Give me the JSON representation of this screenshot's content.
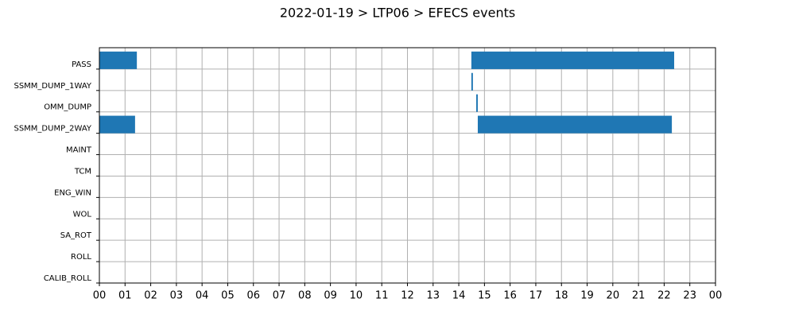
{
  "chart_data": {
    "type": "gantt",
    "title": "2022-01-19 > LTP06 > EFECS events",
    "categories": [
      "PASS",
      "SSMM_DUMP_1WAY",
      "OMM_DUMP",
      "SSMM_DUMP_2WAY",
      "MAINT",
      "TCM",
      "ENG_WIN",
      "WOL",
      "SA_ROT",
      "ROLL",
      "CALIB_ROLL"
    ],
    "intervals": [
      [
        [
          0,
          1.46
        ],
        [
          14.49,
          22.39
        ]
      ],
      [
        [
          14.49,
          14.55
        ]
      ],
      [
        [
          14.68,
          14.74
        ]
      ],
      [
        [
          0,
          1.39
        ],
        [
          14.74,
          22.3
        ]
      ],
      [],
      [],
      [],
      [],
      [],
      [],
      []
    ],
    "color": "#1f77b4",
    "xlim": [
      0,
      24
    ],
    "xticks": [
      {
        "value": 0,
        "label": "00"
      },
      {
        "value": 1,
        "label": "01"
      },
      {
        "value": 2,
        "label": "02"
      },
      {
        "value": 3,
        "label": "03"
      },
      {
        "value": 4,
        "label": "04"
      },
      {
        "value": 5,
        "label": "05"
      },
      {
        "value": 6,
        "label": "06"
      },
      {
        "value": 7,
        "label": "07"
      },
      {
        "value": 8,
        "label": "08"
      },
      {
        "value": 9,
        "label": "09"
      },
      {
        "value": 10,
        "label": "10"
      },
      {
        "value": 11,
        "label": "11"
      },
      {
        "value": 12,
        "label": "12"
      },
      {
        "value": 13,
        "label": "13"
      },
      {
        "value": 14,
        "label": "14"
      },
      {
        "value": 15,
        "label": "15"
      },
      {
        "value": 16,
        "label": "16"
      },
      {
        "value": 17,
        "label": "17"
      },
      {
        "value": 18,
        "label": "18"
      },
      {
        "value": 19,
        "label": "19"
      },
      {
        "value": 20,
        "label": "20"
      },
      {
        "value": 21,
        "label": "21"
      },
      {
        "value": 22,
        "label": "22"
      },
      {
        "value": 23,
        "label": "23"
      },
      {
        "value": 24,
        "label": "00"
      }
    ],
    "grid": true
  }
}
